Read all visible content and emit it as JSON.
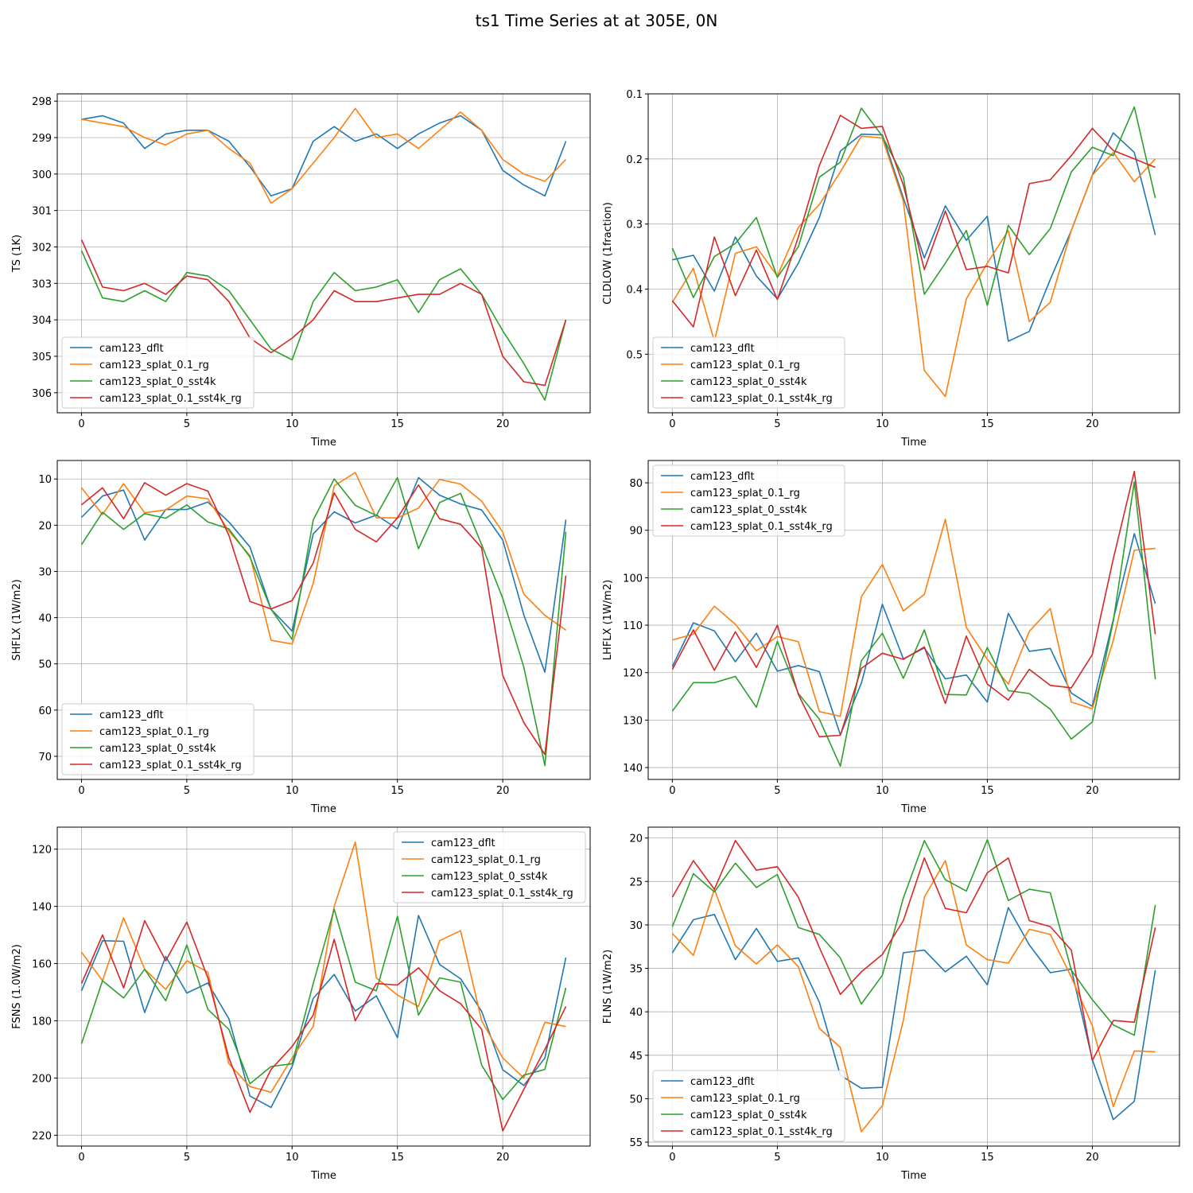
{
  "figure": {
    "suptitle": "ts1 Time Series at at 305E, 0N"
  },
  "colors": {
    "cam123_dflt": "#1f77b4",
    "cam123_splat_0.1_rg": "#ff7f0e",
    "cam123_splat_0_sst4k": "#2ca02c",
    "cam123_splat_0.1_sst4k_rg": "#d62728",
    "grid": "#b0b0b0"
  },
  "chart_data": [
    {
      "type": "line",
      "panel": "top-left",
      "xlabel": "Time",
      "ylabel": "TS (1K)",
      "xlim": [
        -1.15,
        24.15
      ],
      "ylim": [
        306.55,
        297.8
      ],
      "y_inverted": true,
      "xticks": [
        0,
        5,
        10,
        15,
        20
      ],
      "yticks": [
        298,
        299,
        300,
        301,
        302,
        303,
        304,
        305,
        306
      ],
      "grid": true,
      "legend_loc": "lower-left",
      "x": [
        0,
        1,
        2,
        3,
        4,
        5,
        6,
        7,
        8,
        9,
        10,
        11,
        12,
        13,
        14,
        15,
        16,
        17,
        18,
        19,
        20,
        21,
        22,
        23
      ],
      "series": [
        {
          "name": "cam123_dflt",
          "values": [
            298.5,
            298.4,
            298.6,
            299.3,
            298.9,
            298.8,
            298.8,
            299.1,
            299.8,
            300.6,
            300.4,
            299.1,
            298.7,
            299.1,
            298.9,
            299.3,
            298.9,
            298.6,
            298.4,
            298.8,
            299.9,
            300.3,
            300.6,
            299.1
          ]
        },
        {
          "name": "cam123_splat_0.1_rg",
          "values": [
            298.5,
            298.6,
            298.7,
            299.0,
            299.2,
            298.9,
            298.8,
            299.3,
            299.7,
            300.8,
            300.4,
            299.7,
            299.0,
            298.2,
            299.0,
            298.9,
            299.3,
            298.8,
            298.3,
            298.8,
            299.6,
            300.0,
            300.2,
            299.6
          ]
        },
        {
          "name": "cam123_splat_0_sst4k",
          "values": [
            302.1,
            303.4,
            303.5,
            303.2,
            303.5,
            302.7,
            302.8,
            303.2,
            304.0,
            304.8,
            305.1,
            303.5,
            302.7,
            303.2,
            303.1,
            302.9,
            303.8,
            302.9,
            302.6,
            303.3,
            304.3,
            305.2,
            306.2,
            304.0
          ]
        },
        {
          "name": "cam123_splat_0.1_sst4k_rg",
          "values": [
            301.8,
            303.1,
            303.2,
            303.0,
            303.3,
            302.8,
            302.9,
            303.5,
            304.5,
            304.9,
            304.5,
            304.0,
            303.2,
            303.5,
            303.5,
            303.4,
            303.3,
            303.3,
            303.0,
            303.3,
            305.0,
            305.7,
            305.8,
            304.0
          ]
        }
      ]
    },
    {
      "type": "line",
      "panel": "top-right",
      "xlabel": "Time",
      "ylabel": "CLDLOW (1fraction)",
      "xlim": [
        -1.15,
        24.15
      ],
      "ylim": [
        0.59,
        0.1
      ],
      "y_inverted": true,
      "xticks": [
        0,
        5,
        10,
        15,
        20
      ],
      "yticks": [
        0.1,
        0.2,
        0.3,
        0.4,
        0.5
      ],
      "grid": true,
      "legend_loc": "lower-left",
      "x": [
        0,
        1,
        2,
        3,
        4,
        5,
        6,
        7,
        8,
        9,
        10,
        11,
        12,
        13,
        14,
        15,
        16,
        17,
        18,
        19,
        20,
        21,
        22,
        23
      ],
      "series": [
        {
          "name": "cam123_dflt",
          "values": [
            0.355,
            0.348,
            0.403,
            0.32,
            0.38,
            0.415,
            0.36,
            0.29,
            0.188,
            0.162,
            0.163,
            0.26,
            0.352,
            0.272,
            0.325,
            0.288,
            0.48,
            0.465,
            0.385,
            0.31,
            0.225,
            0.16,
            0.19,
            0.317
          ]
        },
        {
          "name": "cam123_splat_0.1_rg",
          "values": [
            0.42,
            0.368,
            0.48,
            0.345,
            0.335,
            0.38,
            0.305,
            0.27,
            0.22,
            0.165,
            0.168,
            0.265,
            0.525,
            0.565,
            0.415,
            0.36,
            0.31,
            0.45,
            0.42,
            0.31,
            0.225,
            0.19,
            0.235,
            0.2
          ]
        },
        {
          "name": "cam123_splat_0_sst4k",
          "values": [
            0.337,
            0.413,
            0.35,
            0.33,
            0.29,
            0.382,
            0.335,
            0.228,
            0.205,
            0.122,
            0.165,
            0.228,
            0.408,
            0.36,
            0.31,
            0.425,
            0.302,
            0.347,
            0.307,
            0.22,
            0.182,
            0.195,
            0.12,
            0.26
          ]
        },
        {
          "name": "cam123_splat_0.1_sst4k_rg",
          "values": [
            0.418,
            0.458,
            0.32,
            0.41,
            0.34,
            0.416,
            0.32,
            0.21,
            0.133,
            0.153,
            0.15,
            0.24,
            0.37,
            0.28,
            0.37,
            0.365,
            0.375,
            0.238,
            0.232,
            0.195,
            0.153,
            0.187,
            0.2,
            0.213
          ]
        }
      ]
    },
    {
      "type": "line",
      "panel": "middle-left",
      "xlabel": "Time",
      "ylabel": "SHFLX (1W/m2)",
      "xlim": [
        -1.15,
        24.15
      ],
      "ylim": [
        75,
        6
      ],
      "y_inverted": true,
      "xticks": [
        0,
        5,
        10,
        15,
        20
      ],
      "yticks": [
        10,
        20,
        30,
        40,
        50,
        60,
        70
      ],
      "grid": true,
      "legend_loc": "lower-left",
      "x": [
        0,
        1,
        2,
        3,
        4,
        5,
        6,
        7,
        8,
        9,
        10,
        11,
        12,
        13,
        14,
        15,
        16,
        17,
        18,
        19,
        20,
        21,
        22,
        23
      ],
      "series": [
        {
          "name": "cam123_dflt",
          "values": [
            18.3,
            13.7,
            12.4,
            23.2,
            16.6,
            16.6,
            15.0,
            19.3,
            24.7,
            38.2,
            42.9,
            21.9,
            17.1,
            19.5,
            17.8,
            20.8,
            9.7,
            13.5,
            15.4,
            16.7,
            23.2,
            39.4,
            51.8,
            18.8
          ]
        },
        {
          "name": "cam123_splat_0.1_rg",
          "values": [
            11.9,
            17.7,
            11.0,
            17.3,
            16.7,
            13.7,
            14.3,
            21.3,
            26.6,
            44.9,
            45.7,
            32.6,
            11.5,
            8.6,
            18.4,
            18.4,
            16.3,
            10.1,
            11.1,
            14.8,
            21.5,
            34.9,
            39.5,
            42.7
          ]
        },
        {
          "name": "cam123_splat_0_sst4k",
          "values": [
            24.2,
            17.2,
            20.9,
            17.5,
            18.5,
            15.6,
            19.3,
            20.8,
            26.9,
            38.2,
            44.7,
            18.9,
            10.0,
            15.7,
            17.9,
            9.7,
            25.1,
            15.1,
            13.1,
            24.2,
            35.8,
            50.7,
            72.0,
            21.4
          ]
        },
        {
          "name": "cam123_splat_0.1_sst4k_rg",
          "values": [
            15.6,
            11.9,
            18.6,
            10.8,
            13.5,
            11.0,
            12.6,
            22.2,
            36.5,
            38.1,
            36.3,
            28.2,
            13.0,
            20.9,
            23.6,
            18.4,
            11.3,
            18.6,
            19.8,
            24.9,
            52.5,
            62.7,
            69.6,
            30.9
          ]
        }
      ]
    },
    {
      "type": "line",
      "panel": "middle-right",
      "xlabel": "Time",
      "ylabel": "LHFLX (1W/m2)",
      "xlim": [
        -1.15,
        24.15
      ],
      "ylim": [
        142.5,
        75.3
      ],
      "y_inverted": true,
      "xticks": [
        0,
        5,
        10,
        15,
        20
      ],
      "yticks": [
        80,
        90,
        100,
        110,
        120,
        130,
        140
      ],
      "grid": true,
      "legend_loc": "upper-left",
      "x": [
        0,
        1,
        2,
        3,
        4,
        5,
        6,
        7,
        8,
        9,
        10,
        11,
        12,
        13,
        14,
        15,
        16,
        17,
        18,
        19,
        20,
        21,
        22,
        23
      ],
      "series": [
        {
          "name": "cam123_dflt",
          "values": [
            118.7,
            109.5,
            111.2,
            117.7,
            111.7,
            119.7,
            118.5,
            119.8,
            133.1,
            122.2,
            105.6,
            117.1,
            114.8,
            121.3,
            120.5,
            126.2,
            107.5,
            115.5,
            114.9,
            124.3,
            127.1,
            108.8,
            90.7,
            105.5
          ]
        },
        {
          "name": "cam123_splat_0.1_rg",
          "values": [
            113.1,
            111.9,
            106.0,
            109.8,
            115.4,
            112.4,
            113.5,
            128.2,
            129.2,
            104.0,
            97.2,
            107.0,
            103.5,
            87.7,
            110.5,
            117.2,
            122.4,
            111.3,
            106.5,
            126.2,
            127.6,
            113.2,
            94.2,
            93.8
          ]
        },
        {
          "name": "cam123_splat_0_sst4k",
          "values": [
            128.1,
            122.1,
            122.1,
            120.8,
            127.3,
            113.4,
            124.4,
            129.8,
            139.7,
            117.5,
            111.7,
            121.2,
            111.0,
            124.6,
            124.7,
            114.7,
            123.8,
            124.4,
            127.7,
            134.0,
            130.4,
            109.1,
            79.8,
            121.4
          ]
        },
        {
          "name": "cam123_splat_0.1_sst4k_rg",
          "values": [
            119.3,
            111.0,
            119.5,
            111.4,
            118.9,
            110.0,
            124.6,
            133.5,
            133.2,
            119.1,
            115.9,
            117.2,
            114.6,
            126.5,
            112.3,
            122.4,
            125.8,
            119.3,
            122.7,
            123.2,
            116.2,
            96.0,
            77.6,
            111.9
          ]
        }
      ]
    },
    {
      "type": "line",
      "panel": "bottom-left",
      "xlabel": "Time",
      "ylabel": "FSNS (1.0W/m2)",
      "xlim": [
        -1.15,
        24.15
      ],
      "ylim": [
        223.8,
        112.3
      ],
      "y_inverted": true,
      "xticks": [
        0,
        5,
        10,
        15,
        20
      ],
      "yticks": [
        120,
        140,
        160,
        180,
        200,
        220
      ],
      "grid": true,
      "legend_loc": "upper-right",
      "x": [
        0,
        1,
        2,
        3,
        4,
        5,
        6,
        7,
        8,
        9,
        10,
        11,
        12,
        13,
        14,
        15,
        16,
        17,
        18,
        19,
        20,
        21,
        22,
        23
      ],
      "series": [
        {
          "name": "cam123_dflt",
          "values": [
            169.5,
            152.0,
            152.2,
            177.1,
            157.5,
            170.3,
            166.8,
            179.3,
            206.3,
            210.3,
            196.0,
            172.2,
            163.8,
            176.6,
            171.3,
            185.9,
            143.2,
            160.3,
            165.3,
            176.7,
            197.1,
            202.6,
            193.0,
            157.9
          ]
        },
        {
          "name": "cam123_splat_0.1_rg",
          "values": [
            156.0,
            166.0,
            144.0,
            162.0,
            169.0,
            159.0,
            163.0,
            195.0,
            203.0,
            205.0,
            193.0,
            182.0,
            140.0,
            117.5,
            165.0,
            171.0,
            175.0,
            152.0,
            148.5,
            180.0,
            193.0,
            200.0,
            180.5,
            182.0
          ]
        },
        {
          "name": "cam123_splat_0_sst4k",
          "values": [
            188.0,
            166.0,
            172.0,
            162.0,
            173.0,
            153.5,
            176.0,
            183.0,
            202.0,
            196.0,
            195.0,
            167.0,
            141.0,
            166.5,
            169.5,
            143.5,
            178.0,
            165.0,
            166.5,
            195.5,
            207.5,
            199.0,
            197.0,
            168.5
          ]
        },
        {
          "name": "cam123_splat_0.1_sst4k_rg",
          "values": [
            167.0,
            150.0,
            168.5,
            145.0,
            159.0,
            145.5,
            165.0,
            193.0,
            212.0,
            197.0,
            189.0,
            178.0,
            151.5,
            180.0,
            167.0,
            167.5,
            161.5,
            169.5,
            174.0,
            183.0,
            218.5,
            204.0,
            190.0,
            175.0
          ]
        }
      ]
    },
    {
      "type": "line",
      "panel": "bottom-right",
      "xlabel": "Time",
      "ylabel": "FLNS (1W/m2)",
      "xlim": [
        -1.15,
        24.15
      ],
      "ylim": [
        55.45,
        18.75
      ],
      "y_inverted": true,
      "xticks": [
        0,
        5,
        10,
        15,
        20
      ],
      "yticks": [
        20,
        25,
        30,
        35,
        40,
        45,
        50,
        55
      ],
      "grid": true,
      "legend_loc": "lower-left",
      "x": [
        0,
        1,
        2,
        3,
        4,
        5,
        6,
        7,
        8,
        9,
        10,
        11,
        12,
        13,
        14,
        15,
        16,
        17,
        18,
        19,
        20,
        21,
        22,
        23
      ],
      "series": [
        {
          "name": "cam123_dflt",
          "values": [
            33.2,
            29.4,
            28.8,
            34.0,
            30.4,
            34.2,
            33.8,
            38.9,
            47.3,
            48.8,
            48.7,
            33.2,
            32.9,
            35.4,
            33.6,
            36.9,
            28.0,
            32.3,
            35.5,
            35.1,
            45.5,
            52.4,
            50.3,
            35.2
          ]
        },
        {
          "name": "cam123_splat_0.1_rg",
          "values": [
            31.0,
            33.5,
            25.9,
            32.4,
            34.5,
            32.3,
            34.8,
            41.9,
            44.1,
            53.8,
            50.8,
            41.0,
            26.8,
            22.6,
            32.3,
            34.0,
            34.4,
            30.5,
            31.1,
            36.0,
            41.6,
            50.9,
            44.5,
            44.6
          ]
        },
        {
          "name": "cam123_splat_0_sst4k",
          "values": [
            30.2,
            24.1,
            26.2,
            22.9,
            25.7,
            24.2,
            30.3,
            31.1,
            33.8,
            39.1,
            35.8,
            26.9,
            20.3,
            24.8,
            26.1,
            20.2,
            27.2,
            25.9,
            26.3,
            35.2,
            38.6,
            41.5,
            42.7,
            27.7
          ]
        },
        {
          "name": "cam123_splat_0.1_sst4k_rg",
          "values": [
            26.8,
            22.6,
            25.9,
            20.3,
            23.7,
            23.3,
            26.8,
            32.6,
            38.0,
            35.4,
            33.4,
            29.5,
            22.3,
            28.1,
            28.6,
            24.0,
            22.3,
            29.5,
            30.2,
            32.9,
            45.6,
            41.0,
            41.2,
            30.3
          ]
        }
      ]
    }
  ]
}
